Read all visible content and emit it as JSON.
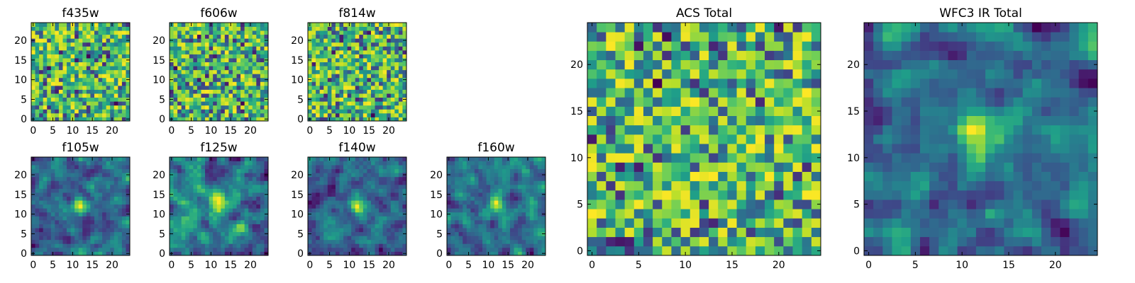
{
  "chart_data": {
    "type": "heatmap",
    "colormap": "viridis",
    "color_range": [
      0,
      1
    ],
    "grid_size": 25,
    "axis_range": [
      0,
      24
    ],
    "ticks": [
      0,
      5,
      10,
      15,
      20
    ],
    "tick_labels": [
      "0",
      "5",
      "10",
      "15",
      "20"
    ],
    "panels": [
      {
        "title": "f435w",
        "field": "noise",
        "seed": 11,
        "smooth": 0
      },
      {
        "title": "f606w",
        "field": "noise",
        "seed": 23,
        "smooth": 0
      },
      {
        "title": "f814w",
        "field": "noise",
        "seed": 37,
        "smooth": 0
      },
      {
        "title": "f105w",
        "field": "noise+source",
        "seed": 41,
        "smooth": 1
      },
      {
        "title": "f125w",
        "field": "noise+source",
        "seed": 53,
        "smooth": 1
      },
      {
        "title": "f140w",
        "field": "noise+source",
        "seed": 67,
        "smooth": 1
      },
      {
        "title": "f160w",
        "field": "noise+source",
        "seed": 79,
        "smooth": 1
      },
      {
        "title": "ACS Total",
        "field": "noise",
        "seed": 97,
        "smooth": 0
      },
      {
        "title": "WFC3 IR Total",
        "field": "noise+source",
        "seed": 113,
        "smooth": 1
      }
    ]
  }
}
